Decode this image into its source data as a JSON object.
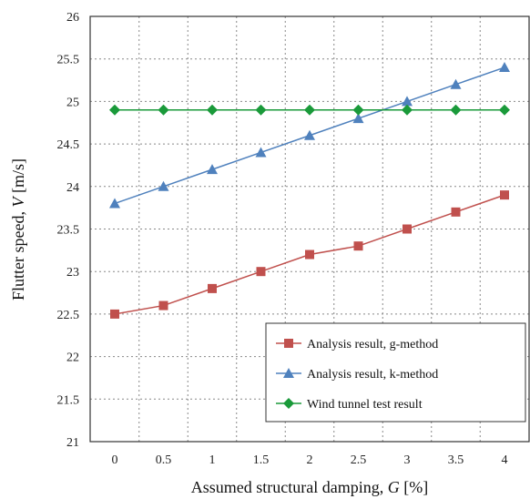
{
  "chart_data": {
    "type": "line",
    "title": "",
    "xlabel": "Assumed structural damping, G [%]",
    "xlabel_parts": [
      "Assumed structural damping, ",
      "G",
      " [%]"
    ],
    "ylabel": "Flutter speed, V [m/s]",
    "ylabel_parts": [
      "Flutter speed, ",
      "V",
      " [m/s]"
    ],
    "x": [
      0,
      0.5,
      1,
      1.5,
      2,
      2.5,
      3,
      3.5,
      4
    ],
    "x_tick_labels": [
      "0",
      "0.5",
      "1",
      "1.5",
      "2",
      "2.5",
      "3",
      "3.5",
      "4"
    ],
    "y_tick_labels": [
      "21",
      "21.5",
      "22",
      "22.5",
      "23",
      "23.5",
      "24",
      "24.5",
      "25",
      "25.5",
      "26"
    ],
    "ylim": [
      21,
      26
    ],
    "grid": true,
    "legend_position": "bottom-right",
    "series": [
      {
        "name": "Analysis result, g-method",
        "color": "#c0504d",
        "marker": "square",
        "values": [
          22.5,
          22.6,
          22.8,
          23.0,
          23.2,
          23.3,
          23.5,
          23.7,
          23.9
        ]
      },
      {
        "name": "Analysis result, k-method",
        "color": "#4f81bd",
        "marker": "triangle",
        "values": [
          23.8,
          24.0,
          24.2,
          24.4,
          24.6,
          24.8,
          25.0,
          25.2,
          25.4
        ]
      },
      {
        "name": "Wind tunnel test result",
        "color": "#1a9a3a",
        "marker": "diamond",
        "values": [
          24.9,
          24.9,
          24.9,
          24.9,
          24.9,
          24.9,
          24.9,
          24.9,
          24.9
        ]
      }
    ]
  }
}
